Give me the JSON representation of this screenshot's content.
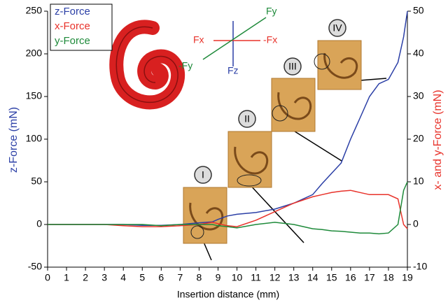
{
  "chart_data": {
    "type": "line",
    "x": [
      0,
      1,
      2,
      3,
      4,
      5,
      6,
      7,
      8,
      8.7,
      9,
      9.5,
      10,
      11,
      12,
      13,
      14,
      14.5,
      15,
      15.5,
      16,
      16.5,
      17,
      17.5,
      18,
      18.5,
      18.8,
      19
    ],
    "series": [
      {
        "name": "z-Force",
        "color": "#2b3fa6",
        "axis": "y",
        "values": [
          0,
          0,
          0,
          0,
          0,
          -1,
          -1,
          0,
          2,
          3,
          6,
          10,
          12,
          14,
          18,
          25,
          35,
          48,
          60,
          72,
          100,
          125,
          150,
          165,
          170,
          190,
          220,
          250
        ]
      },
      {
        "name": "x-Force",
        "color": "#e8322a",
        "axis": "y2",
        "values": [
          0,
          0,
          0,
          0,
          -0.3,
          -0.5,
          -0.5,
          -0.3,
          0,
          0.5,
          0.2,
          -0.3,
          -0.5,
          1,
          3,
          5,
          6.5,
          7,
          7.5,
          7.8,
          8,
          7.5,
          7,
          7,
          7,
          6,
          0,
          -1
        ]
      },
      {
        "name": "y-Force",
        "color": "#1e8a3a",
        "axis": "y2",
        "values": [
          0,
          0,
          0,
          0,
          0,
          0,
          -0.3,
          0,
          0,
          0,
          -0.3,
          -0.5,
          -0.8,
          0,
          0.5,
          0,
          -1,
          -1.2,
          -1.5,
          -1.6,
          -1.8,
          -2,
          -2,
          -2.2,
          -2,
          0,
          8,
          10
        ]
      }
    ],
    "xlabel": "Insertion distance (mm)",
    "ylabel": "z-Force (mN)",
    "y2label": "x- and y-Force (mN)",
    "xlim": [
      0,
      19
    ],
    "xticks": [
      0,
      1,
      2,
      3,
      4,
      5,
      6,
      7,
      8,
      9,
      10,
      11,
      12,
      13,
      14,
      15,
      16,
      17,
      18,
      19
    ],
    "ylim": [
      -50,
      250
    ],
    "yticks": [
      -50,
      0,
      50,
      100,
      150,
      200,
      250
    ],
    "y2lim": [
      -10,
      50
    ],
    "y2ticks": [
      -10,
      0,
      10,
      20,
      30,
      40,
      50
    ],
    "legend": "upper left",
    "annotations": {
      "force_axes": [
        "Fy",
        "Fx",
        "-Fx",
        "-Fy",
        "Fz"
      ],
      "stages": [
        "I",
        "II",
        "III",
        "IV"
      ]
    }
  }
}
